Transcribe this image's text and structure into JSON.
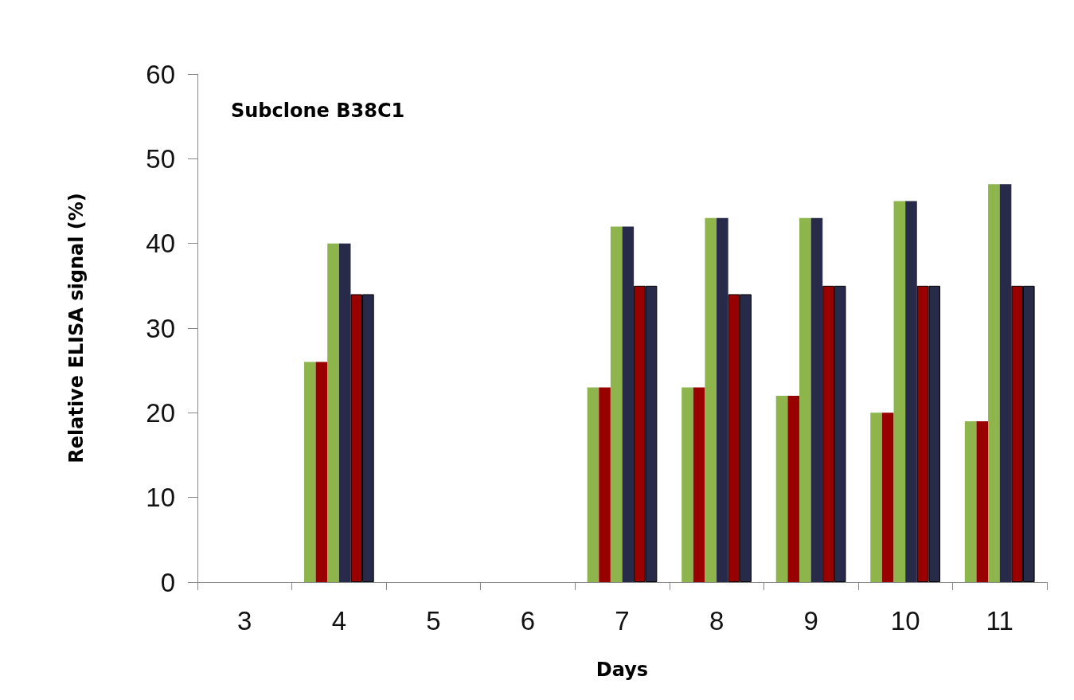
{
  "chart_data": {
    "type": "bar",
    "title": "Subclone B38C1",
    "xlabel": "Days",
    "ylabel": "Relative ELISA signal (%)",
    "categories": [
      "3",
      "4",
      "5",
      "6",
      "7",
      "8",
      "9",
      "10",
      "11"
    ],
    "series": [
      {
        "color": "#8db54c",
        "values": [
          null,
          26,
          null,
          null,
          23,
          23,
          22,
          20,
          19
        ]
      },
      {
        "color": "#990000",
        "values": [
          null,
          26,
          null,
          null,
          23,
          23,
          22,
          20,
          19
        ]
      },
      {
        "color": "#8db54c",
        "values": [
          null,
          40,
          null,
          null,
          42,
          43,
          43,
          45,
          47
        ]
      },
      {
        "color": "#272a48",
        "values": [
          null,
          40,
          null,
          null,
          42,
          43,
          43,
          45,
          47
        ]
      },
      {
        "color": "#990000",
        "values": [
          null,
          34,
          null,
          null,
          35,
          34,
          35,
          35,
          35
        ]
      },
      {
        "color": "#272a48",
        "values": [
          null,
          34,
          null,
          null,
          35,
          34,
          35,
          35,
          35
        ]
      }
    ],
    "ylim": [
      0,
      60
    ],
    "yticks": [
      0,
      10,
      20,
      30,
      40,
      50,
      60
    ],
    "grid": false
  }
}
